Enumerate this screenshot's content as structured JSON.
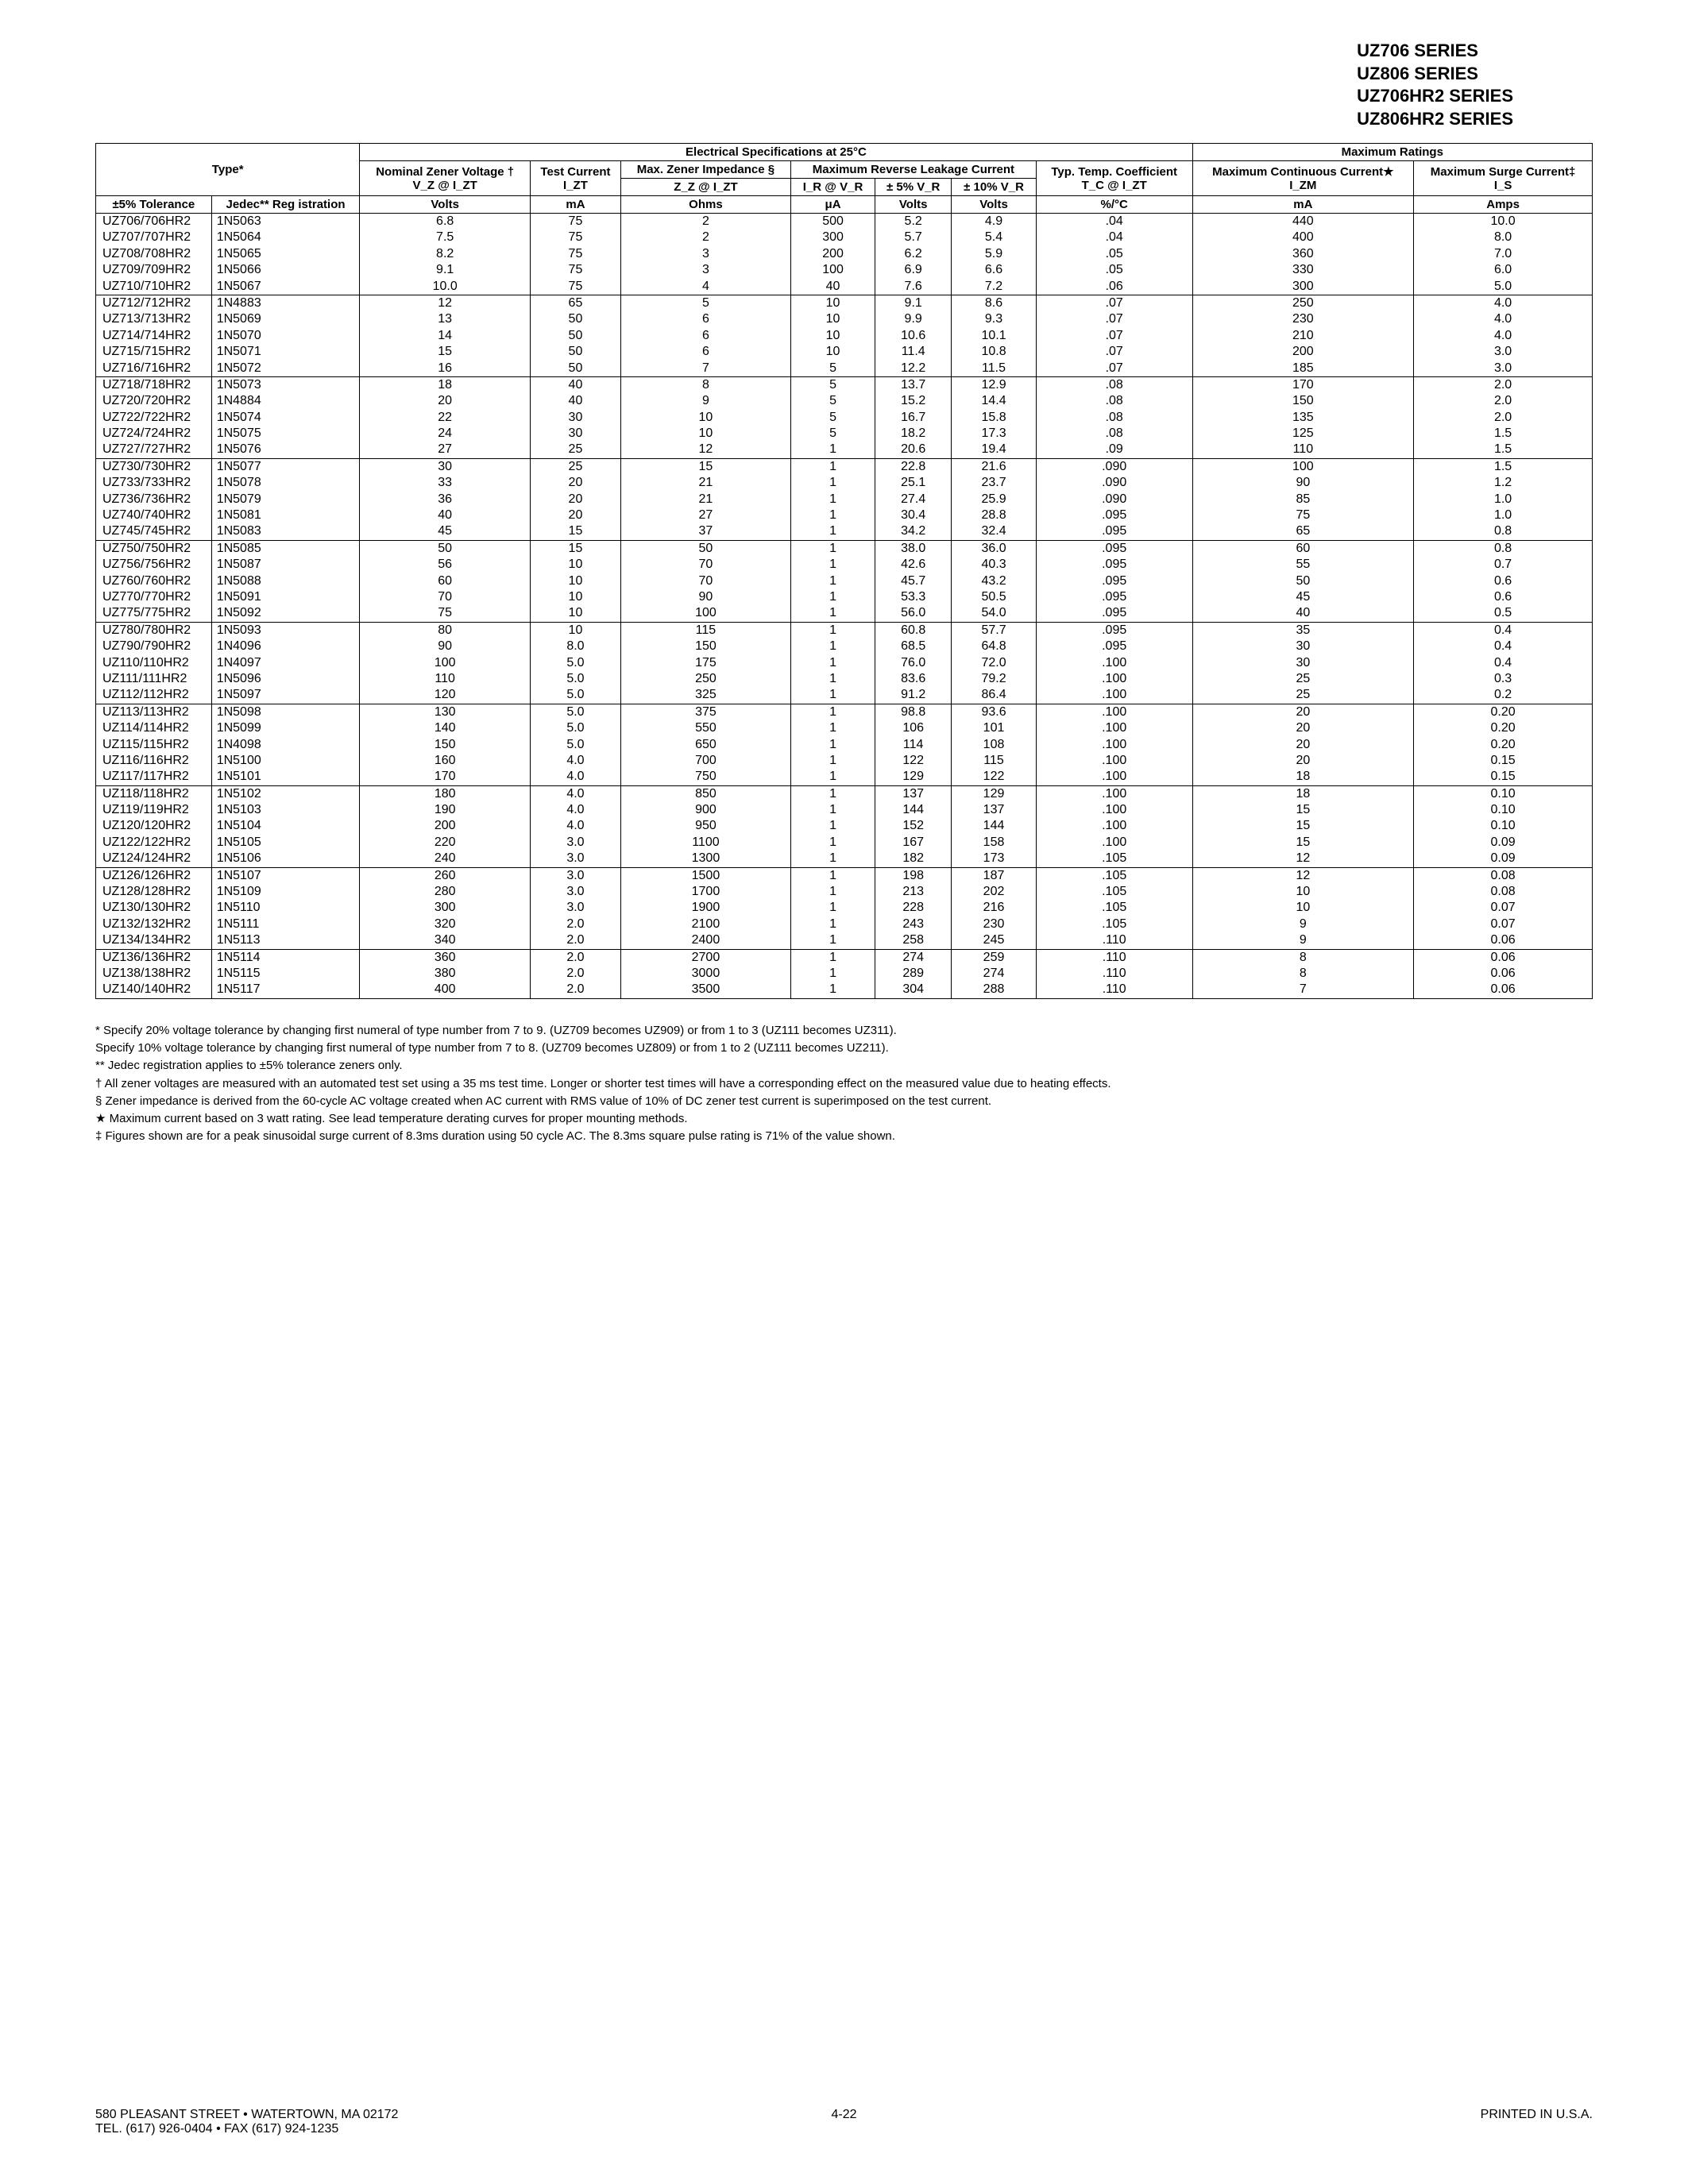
{
  "header": {
    "series": [
      "UZ706 SERIES",
      "UZ806 SERIES",
      "UZ706HR2 SERIES",
      "UZ806HR2 SERIES"
    ]
  },
  "table": {
    "section_elec": "Electrical Specifications at 25°C",
    "section_max": "Maximum Ratings",
    "col_type": "Type*",
    "col_nominal": "Nominal Zener Voltage †",
    "col_nominal_sub": "V_Z @ I_ZT",
    "col_test": "Test Current",
    "col_test_sub": "I_ZT",
    "col_imp": "Max. Zener Impedance §",
    "col_imp_sub": "Z_Z @ I_ZT",
    "col_leak": "Maximum Reverse Leakage Current",
    "col_ir": "I_R @ V_R",
    "col_5pct": "± 5% V_R",
    "col_10pct": "± 10% V_R",
    "col_temp": "Typ. Temp. Coefficient",
    "col_temp_sub": "T_C @ I_ZT",
    "col_cont": "Maximum Continuous Current★",
    "col_cont_sub": "I_ZM",
    "col_surge": "Maximum Surge Current‡",
    "col_surge_sub": "I_S",
    "col_tol": "±5% Tolerance",
    "col_jedec": "Jedec** Reg istration",
    "unit_volts": "Volts",
    "unit_ma": "mA",
    "unit_ohms": "Ohms",
    "unit_ua": "μA",
    "unit_pctc": "%/°C",
    "unit_amps": "Amps",
    "groups": [
      [
        [
          "UZ706/706HR2",
          "1N5063",
          "6.8",
          "75",
          "2",
          "500",
          "5.2",
          "4.9",
          ".04",
          "440",
          "10.0"
        ],
        [
          "UZ707/707HR2",
          "1N5064",
          "7.5",
          "75",
          "2",
          "300",
          "5.7",
          "5.4",
          ".04",
          "400",
          "8.0"
        ],
        [
          "UZ708/708HR2",
          "1N5065",
          "8.2",
          "75",
          "3",
          "200",
          "6.2",
          "5.9",
          ".05",
          "360",
          "7.0"
        ],
        [
          "UZ709/709HR2",
          "1N5066",
          "9.1",
          "75",
          "3",
          "100",
          "6.9",
          "6.6",
          ".05",
          "330",
          "6.0"
        ],
        [
          "UZ710/710HR2",
          "1N5067",
          "10.0",
          "75",
          "4",
          "40",
          "7.6",
          "7.2",
          ".06",
          "300",
          "5.0"
        ]
      ],
      [
        [
          "UZ712/712HR2",
          "1N4883",
          "12",
          "65",
          "5",
          "10",
          "9.1",
          "8.6",
          ".07",
          "250",
          "4.0"
        ],
        [
          "UZ713/713HR2",
          "1N5069",
          "13",
          "50",
          "6",
          "10",
          "9.9",
          "9.3",
          ".07",
          "230",
          "4.0"
        ],
        [
          "UZ714/714HR2",
          "1N5070",
          "14",
          "50",
          "6",
          "10",
          "10.6",
          "10.1",
          ".07",
          "210",
          "4.0"
        ],
        [
          "UZ715/715HR2",
          "1N5071",
          "15",
          "50",
          "6",
          "10",
          "11.4",
          "10.8",
          ".07",
          "200",
          "3.0"
        ],
        [
          "UZ716/716HR2",
          "1N5072",
          "16",
          "50",
          "7",
          "5",
          "12.2",
          "11.5",
          ".07",
          "185",
          "3.0"
        ]
      ],
      [
        [
          "UZ718/718HR2",
          "1N5073",
          "18",
          "40",
          "8",
          "5",
          "13.7",
          "12.9",
          ".08",
          "170",
          "2.0"
        ],
        [
          "UZ720/720HR2",
          "1N4884",
          "20",
          "40",
          "9",
          "5",
          "15.2",
          "14.4",
          ".08",
          "150",
          "2.0"
        ],
        [
          "UZ722/722HR2",
          "1N5074",
          "22",
          "30",
          "10",
          "5",
          "16.7",
          "15.8",
          ".08",
          "135",
          "2.0"
        ],
        [
          "UZ724/724HR2",
          "1N5075",
          "24",
          "30",
          "10",
          "5",
          "18.2",
          "17.3",
          ".08",
          "125",
          "1.5"
        ],
        [
          "UZ727/727HR2",
          "1N5076",
          "27",
          "25",
          "12",
          "1",
          "20.6",
          "19.4",
          ".09",
          "110",
          "1.5"
        ]
      ],
      [
        [
          "UZ730/730HR2",
          "1N5077",
          "30",
          "25",
          "15",
          "1",
          "22.8",
          "21.6",
          ".090",
          "100",
          "1.5"
        ],
        [
          "UZ733/733HR2",
          "1N5078",
          "33",
          "20",
          "21",
          "1",
          "25.1",
          "23.7",
          ".090",
          "90",
          "1.2"
        ],
        [
          "UZ736/736HR2",
          "1N5079",
          "36",
          "20",
          "21",
          "1",
          "27.4",
          "25.9",
          ".090",
          "85",
          "1.0"
        ],
        [
          "UZ740/740HR2",
          "1N5081",
          "40",
          "20",
          "27",
          "1",
          "30.4",
          "28.8",
          ".095",
          "75",
          "1.0"
        ],
        [
          "UZ745/745HR2",
          "1N5083",
          "45",
          "15",
          "37",
          "1",
          "34.2",
          "32.4",
          ".095",
          "65",
          "0.8"
        ]
      ],
      [
        [
          "UZ750/750HR2",
          "1N5085",
          "50",
          "15",
          "50",
          "1",
          "38.0",
          "36.0",
          ".095",
          "60",
          "0.8"
        ],
        [
          "UZ756/756HR2",
          "1N5087",
          "56",
          "10",
          "70",
          "1",
          "42.6",
          "40.3",
          ".095",
          "55",
          "0.7"
        ],
        [
          "UZ760/760HR2",
          "1N5088",
          "60",
          "10",
          "70",
          "1",
          "45.7",
          "43.2",
          ".095",
          "50",
          "0.6"
        ],
        [
          "UZ770/770HR2",
          "1N5091",
          "70",
          "10",
          "90",
          "1",
          "53.3",
          "50.5",
          ".095",
          "45",
          "0.6"
        ],
        [
          "UZ775/775HR2",
          "1N5092",
          "75",
          "10",
          "100",
          "1",
          "56.0",
          "54.0",
          ".095",
          "40",
          "0.5"
        ]
      ],
      [
        [
          "UZ780/780HR2",
          "1N5093",
          "80",
          "10",
          "115",
          "1",
          "60.8",
          "57.7",
          ".095",
          "35",
          "0.4"
        ],
        [
          "UZ790/790HR2",
          "1N4096",
          "90",
          "8.0",
          "150",
          "1",
          "68.5",
          "64.8",
          ".095",
          "30",
          "0.4"
        ],
        [
          "UZ110/110HR2",
          "1N4097",
          "100",
          "5.0",
          "175",
          "1",
          "76.0",
          "72.0",
          ".100",
          "30",
          "0.4"
        ],
        [
          "UZ111/111HR2",
          "1N5096",
          "110",
          "5.0",
          "250",
          "1",
          "83.6",
          "79.2",
          ".100",
          "25",
          "0.3"
        ],
        [
          "UZ112/112HR2",
          "1N5097",
          "120",
          "5.0",
          "325",
          "1",
          "91.2",
          "86.4",
          ".100",
          "25",
          "0.2"
        ]
      ],
      [
        [
          "UZ113/113HR2",
          "1N5098",
          "130",
          "5.0",
          "375",
          "1",
          "98.8",
          "93.6",
          ".100",
          "20",
          "0.20"
        ],
        [
          "UZ114/114HR2",
          "1N5099",
          "140",
          "5.0",
          "550",
          "1",
          "106",
          "101",
          ".100",
          "20",
          "0.20"
        ],
        [
          "UZ115/115HR2",
          "1N4098",
          "150",
          "5.0",
          "650",
          "1",
          "114",
          "108",
          ".100",
          "20",
          "0.20"
        ],
        [
          "UZ116/116HR2",
          "1N5100",
          "160",
          "4.0",
          "700",
          "1",
          "122",
          "115",
          ".100",
          "20",
          "0.15"
        ],
        [
          "UZ117/117HR2",
          "1N5101",
          "170",
          "4.0",
          "750",
          "1",
          "129",
          "122",
          ".100",
          "18",
          "0.15"
        ]
      ],
      [
        [
          "UZ118/118HR2",
          "1N5102",
          "180",
          "4.0",
          "850",
          "1",
          "137",
          "129",
          ".100",
          "18",
          "0.10"
        ],
        [
          "UZ119/119HR2",
          "1N5103",
          "190",
          "4.0",
          "900",
          "1",
          "144",
          "137",
          ".100",
          "15",
          "0.10"
        ],
        [
          "UZ120/120HR2",
          "1N5104",
          "200",
          "4.0",
          "950",
          "1",
          "152",
          "144",
          ".100",
          "15",
          "0.10"
        ],
        [
          "UZ122/122HR2",
          "1N5105",
          "220",
          "3.0",
          "1100",
          "1",
          "167",
          "158",
          ".100",
          "15",
          "0.09"
        ],
        [
          "UZ124/124HR2",
          "1N5106",
          "240",
          "3.0",
          "1300",
          "1",
          "182",
          "173",
          ".105",
          "12",
          "0.09"
        ]
      ],
      [
        [
          "UZ126/126HR2",
          "1N5107",
          "260",
          "3.0",
          "1500",
          "1",
          "198",
          "187",
          ".105",
          "12",
          "0.08"
        ],
        [
          "UZ128/128HR2",
          "1N5109",
          "280",
          "3.0",
          "1700",
          "1",
          "213",
          "202",
          ".105",
          "10",
          "0.08"
        ],
        [
          "UZ130/130HR2",
          "1N5110",
          "300",
          "3.0",
          "1900",
          "1",
          "228",
          "216",
          ".105",
          "10",
          "0.07"
        ],
        [
          "UZ132/132HR2",
          "1N5111",
          "320",
          "2.0",
          "2100",
          "1",
          "243",
          "230",
          ".105",
          "9",
          "0.07"
        ],
        [
          "UZ134/134HR2",
          "1N5113",
          "340",
          "2.0",
          "2400",
          "1",
          "258",
          "245",
          ".110",
          "9",
          "0.06"
        ]
      ],
      [
        [
          "UZ136/136HR2",
          "1N5114",
          "360",
          "2.0",
          "2700",
          "1",
          "274",
          "259",
          ".110",
          "8",
          "0.06"
        ],
        [
          "UZ138/138HR2",
          "1N5115",
          "380",
          "2.0",
          "3000",
          "1",
          "289",
          "274",
          ".110",
          "8",
          "0.06"
        ],
        [
          "UZ140/140HR2",
          "1N5117",
          "400",
          "2.0",
          "3500",
          "1",
          "304",
          "288",
          ".110",
          "7",
          "0.06"
        ]
      ]
    ]
  },
  "footnotes": [
    "* Specify 20% voltage tolerance by changing first numeral of type number from 7 to 9. (UZ709 becomes UZ909) or from 1 to 3 (UZ111 becomes UZ311).",
    "  Specify 10% voltage tolerance by changing first numeral of type number from 7 to 8. (UZ709 becomes UZ809) or from 1 to 2 (UZ111 becomes UZ211).",
    "** Jedec registration applies to ±5% tolerance zeners only.",
    "† All zener voltages are measured with an automated test set using a 35 ms test time. Longer or shorter test times will have a corresponding effect on the measured value due to heating effects.",
    "§ Zener impedance is derived from the 60-cycle AC voltage created when AC current with RMS value of 10% of DC zener test current is superimposed on the test current.",
    "★ Maximum current based on 3 watt rating. See lead temperature derating curves for proper mounting methods.",
    "‡ Figures shown are for a peak sinusoidal surge current of 8.3ms duration using 50 cycle AC. The 8.3ms square pulse rating is 71% of the value shown."
  ],
  "footer": {
    "left1": "580 PLEASANT STREET • WATERTOWN, MA 02172",
    "left2": "TEL. (617) 926-0404 • FAX (617) 924-1235",
    "center": "4-22",
    "right": "PRINTED IN U.S.A."
  }
}
